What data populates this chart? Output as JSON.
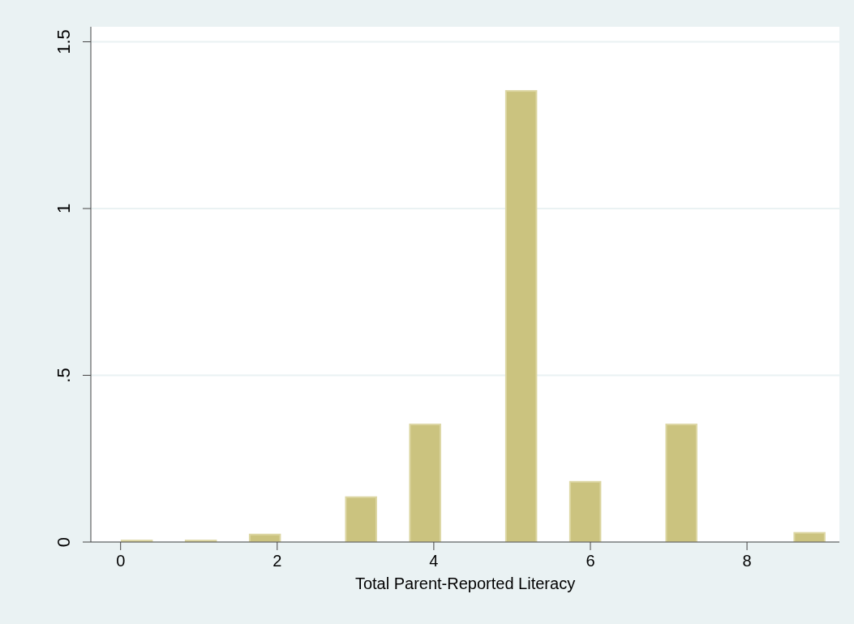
{
  "chart_data": {
    "type": "histogram",
    "xlabel": "Total Parent-Reported Literacy",
    "bins": [
      0,
      0.409,
      0.818,
      1.227,
      1.636,
      2.045,
      2.455,
      2.864,
      3.273,
      3.682,
      4.091,
      4.5,
      4.909,
      5.318,
      5.727,
      6.136,
      6.545,
      6.955,
      7.364,
      7.773,
      8.182,
      8.591,
      9
    ],
    "values": [
      0.007,
      0,
      0.007,
      0,
      0.025,
      0,
      0,
      0.137,
      0,
      0.355,
      0,
      0,
      1.355,
      0,
      0.183,
      0,
      0,
      0.355,
      0,
      0,
      0,
      0.03
    ],
    "color": "#cbc37f",
    "xlim": [
      -0.38,
      9.18
    ],
    "xticks": [
      0,
      2,
      4,
      6,
      8
    ],
    "ylim": [
      0,
      1.545
    ],
    "yticks": [
      {
        "value": 0,
        "label": "0"
      },
      {
        "value": 0.5,
        "label": ".5"
      },
      {
        "value": 1,
        "label": "1"
      },
      {
        "value": 1.5,
        "label": "1.5"
      }
    ],
    "grid": "y"
  }
}
